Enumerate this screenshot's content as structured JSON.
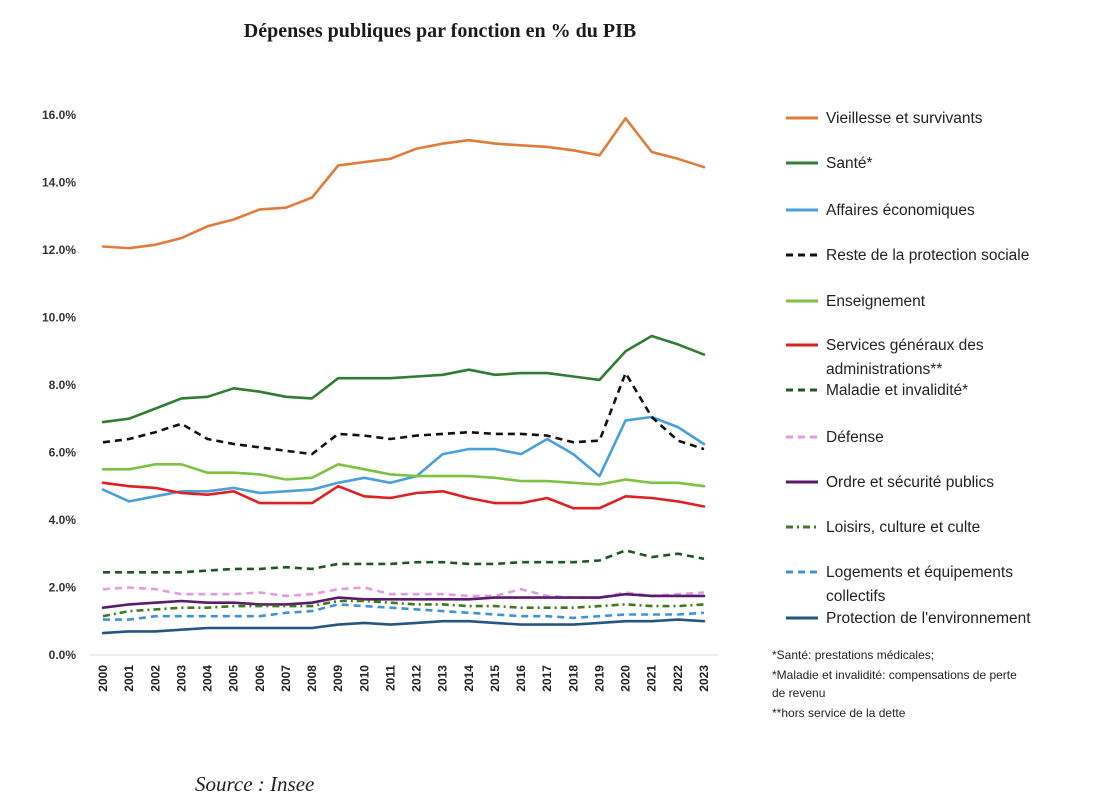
{
  "page": {
    "title": "Dépenses publiques par fonction en % du PIB",
    "source": "Source : Insee"
  },
  "notes": [
    "*Santé: prestations médicales;",
    "*Maladie et invalidité: compensations de perte",
    "de revenu",
    "**hors service de la dette"
  ],
  "chart_data": {
    "type": "line",
    "title": "Dépenses publiques par fonction en % du PIB",
    "xlabel": "",
    "ylabel": "",
    "ylim": [
      0,
      16.5
    ],
    "yticks": [
      0,
      2,
      4,
      6,
      8,
      10,
      12,
      14,
      16
    ],
    "ytick_labels": [
      "0.0%",
      "2.0%",
      "4.0%",
      "6.0%",
      "8.0%",
      "10.0%",
      "12.0%",
      "14.0%",
      "16.0%"
    ],
    "x": [
      "2000",
      "2001",
      "2002",
      "2003",
      "2004",
      "2005",
      "2006",
      "2007",
      "2008",
      "2009",
      "2010",
      "2011",
      "2012",
      "2013",
      "2014",
      "2015",
      "2016",
      "2017",
      "2018",
      "2019",
      "2020",
      "2021",
      "2022",
      "2023"
    ],
    "legend_position": "right",
    "series": [
      {
        "name": "Vieillesse et survivants",
        "legend_lines": [
          "Vieillesse et survivants"
        ],
        "color": "#E07B39",
        "dash": "solid",
        "values": [
          12.1,
          12.05,
          12.15,
          12.35,
          12.7,
          12.9,
          13.2,
          13.25,
          13.55,
          14.5,
          14.6,
          14.7,
          15.0,
          15.15,
          15.25,
          15.15,
          15.1,
          15.05,
          14.95,
          14.8,
          15.9,
          14.9,
          14.7,
          14.45
        ]
      },
      {
        "name": "Santé*",
        "legend_lines": [
          "Santé*"
        ],
        "color": "#2E7D32",
        "dash": "solid",
        "values": [
          6.9,
          7.0,
          7.3,
          7.6,
          7.65,
          7.9,
          7.8,
          7.65,
          7.6,
          8.2,
          8.2,
          8.2,
          8.25,
          8.3,
          8.45,
          8.3,
          8.35,
          8.35,
          8.25,
          8.15,
          9.0,
          9.45,
          9.2,
          8.9
        ]
      },
      {
        "name": "Affaires économiques",
        "legend_lines": [
          "Affaires économiques"
        ],
        "color": "#4A9FDB",
        "dash": "solid",
        "values": [
          4.9,
          4.55,
          4.7,
          4.85,
          4.85,
          4.95,
          4.8,
          4.85,
          4.9,
          5.1,
          5.25,
          5.1,
          5.3,
          5.95,
          6.1,
          6.1,
          5.95,
          6.4,
          5.95,
          5.3,
          6.95,
          7.05,
          6.75,
          6.25
        ]
      },
      {
        "name": "Reste de la protection sociale",
        "legend_lines": [
          "Reste de la protection sociale"
        ],
        "color": "#111111",
        "dash": "7,5",
        "values": [
          6.3,
          6.4,
          6.6,
          6.85,
          6.4,
          6.25,
          6.15,
          6.05,
          5.95,
          6.55,
          6.5,
          6.4,
          6.5,
          6.55,
          6.6,
          6.55,
          6.55,
          6.5,
          6.3,
          6.35,
          8.35,
          7.05,
          6.35,
          6.1
        ]
      },
      {
        "name": "Enseignement",
        "legend_lines": [
          "Enseignement"
        ],
        "color": "#7CC242",
        "dash": "solid",
        "values": [
          5.5,
          5.5,
          5.65,
          5.65,
          5.4,
          5.4,
          5.35,
          5.2,
          5.25,
          5.65,
          5.5,
          5.35,
          5.3,
          5.3,
          5.3,
          5.25,
          5.15,
          5.15,
          5.1,
          5.05,
          5.2,
          5.1,
          5.1,
          5.0
        ]
      },
      {
        "name": "Services généraux des administrations**",
        "legend_lines": [
          "Services généraux des",
          "administrations**"
        ],
        "color": "#E02020",
        "dash": "solid",
        "values": [
          5.1,
          5.0,
          4.95,
          4.8,
          4.75,
          4.85,
          4.5,
          4.5,
          4.5,
          5.0,
          4.7,
          4.65,
          4.8,
          4.85,
          4.65,
          4.5,
          4.5,
          4.65,
          4.35,
          4.35,
          4.7,
          4.65,
          4.55,
          4.4
        ]
      },
      {
        "name": "Maladie et invalidité*",
        "legend_lines": [
          "Maladie et invalidité*"
        ],
        "color": "#1E5626",
        "dash": "7,5",
        "values": [
          2.45,
          2.45,
          2.45,
          2.45,
          2.5,
          2.55,
          2.55,
          2.6,
          2.55,
          2.7,
          2.7,
          2.7,
          2.75,
          2.75,
          2.7,
          2.7,
          2.75,
          2.75,
          2.75,
          2.8,
          3.1,
          2.9,
          3.0,
          2.85
        ]
      },
      {
        "name": "Défense",
        "legend_lines": [
          "Défense"
        ],
        "color": "#E39AE3",
        "dash": "7,5",
        "values": [
          1.95,
          2.0,
          1.95,
          1.8,
          1.8,
          1.8,
          1.85,
          1.75,
          1.8,
          1.95,
          2.0,
          1.8,
          1.8,
          1.8,
          1.75,
          1.75,
          1.95,
          1.75,
          1.7,
          1.7,
          1.85,
          1.75,
          1.8,
          1.85
        ]
      },
      {
        "name": "Ordre et sécurité publics",
        "legend_lines": [
          "Ordre et sécurité publics"
        ],
        "color": "#5B1A6B",
        "dash": "solid",
        "values": [
          1.4,
          1.5,
          1.55,
          1.6,
          1.55,
          1.55,
          1.5,
          1.5,
          1.55,
          1.7,
          1.65,
          1.65,
          1.65,
          1.65,
          1.65,
          1.7,
          1.7,
          1.7,
          1.7,
          1.7,
          1.8,
          1.75,
          1.75,
          1.75
        ]
      },
      {
        "name": "Loisirs, culture et culte",
        "legend_lines": [
          "Loisirs, culture et culte"
        ],
        "color": "#3E7A1E",
        "dash": "7,4,2,4",
        "values": [
          1.15,
          1.3,
          1.35,
          1.4,
          1.4,
          1.45,
          1.45,
          1.45,
          1.45,
          1.6,
          1.6,
          1.55,
          1.5,
          1.5,
          1.45,
          1.45,
          1.4,
          1.4,
          1.4,
          1.45,
          1.5,
          1.45,
          1.45,
          1.5
        ]
      },
      {
        "name": "Logements et équipements collectifs",
        "legend_lines": [
          "Logements et équipements",
          "collectifs"
        ],
        "color": "#3F93D4",
        "dash": "7,5",
        "values": [
          1.05,
          1.05,
          1.15,
          1.15,
          1.15,
          1.15,
          1.15,
          1.25,
          1.3,
          1.5,
          1.45,
          1.4,
          1.35,
          1.3,
          1.25,
          1.2,
          1.15,
          1.15,
          1.1,
          1.15,
          1.2,
          1.2,
          1.2,
          1.25
        ]
      },
      {
        "name": "Protection de l'environnement",
        "legend_lines": [
          "Protection de l'environnement"
        ],
        "color": "#25567F",
        "dash": "solid",
        "values": [
          0.65,
          0.7,
          0.7,
          0.75,
          0.8,
          0.8,
          0.8,
          0.8,
          0.8,
          0.9,
          0.95,
          0.9,
          0.95,
          1.0,
          1.0,
          0.95,
          0.9,
          0.9,
          0.9,
          0.95,
          1.0,
          1.0,
          1.05,
          1.0
        ]
      }
    ]
  }
}
